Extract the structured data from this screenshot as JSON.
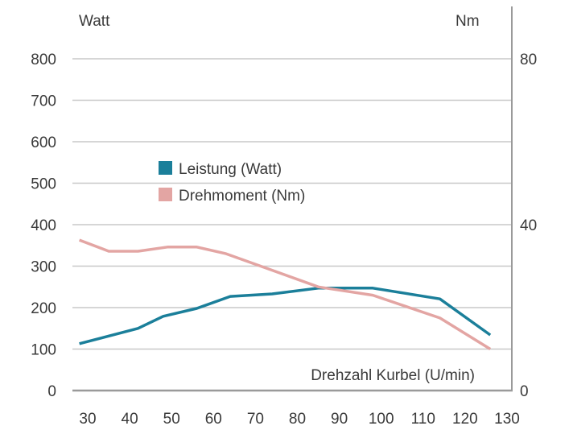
{
  "chart_data": {
    "type": "line",
    "xlabel": "Drehzahl Kurbel (U/min)",
    "ylabel_left": "Watt",
    "ylabel_right": "Nm",
    "xlim": [
      25,
      130
    ],
    "ylim_left": [
      0,
      800
    ],
    "ylim_right": [
      0,
      80
    ],
    "x_ticks": [
      "30",
      "40",
      "50",
      "60",
      "70",
      "80",
      "90",
      "100",
      "110",
      "120",
      "130"
    ],
    "y_ticks_left": [
      "0",
      "100",
      "200",
      "300",
      "400",
      "500",
      "600",
      "700",
      "800"
    ],
    "y_ticks_right": [
      "0",
      "40",
      "80"
    ],
    "grid": true,
    "legend_position": "center-left",
    "series": [
      {
        "name": "Leistung (Watt)",
        "axis": "left",
        "color": "#1b7f9a",
        "points": [
          [
            28,
            113
          ],
          [
            42,
            150
          ],
          [
            48,
            179
          ],
          [
            56,
            198
          ],
          [
            64,
            227
          ],
          [
            74,
            233
          ],
          [
            85,
            247
          ],
          [
            98,
            247
          ],
          [
            114,
            221
          ],
          [
            126,
            134
          ]
        ]
      },
      {
        "name": "Drehmoment (Nm)",
        "axis": "right",
        "color": "#e3a5a3",
        "points": [
          [
            28,
            36.3
          ],
          [
            35,
            33.6
          ],
          [
            42,
            33.6
          ],
          [
            49,
            34.6
          ],
          [
            56,
            34.6
          ],
          [
            63,
            33
          ],
          [
            74,
            29
          ],
          [
            85,
            25
          ],
          [
            98,
            23
          ],
          [
            114,
            17.5
          ],
          [
            126,
            10
          ]
        ]
      }
    ]
  }
}
